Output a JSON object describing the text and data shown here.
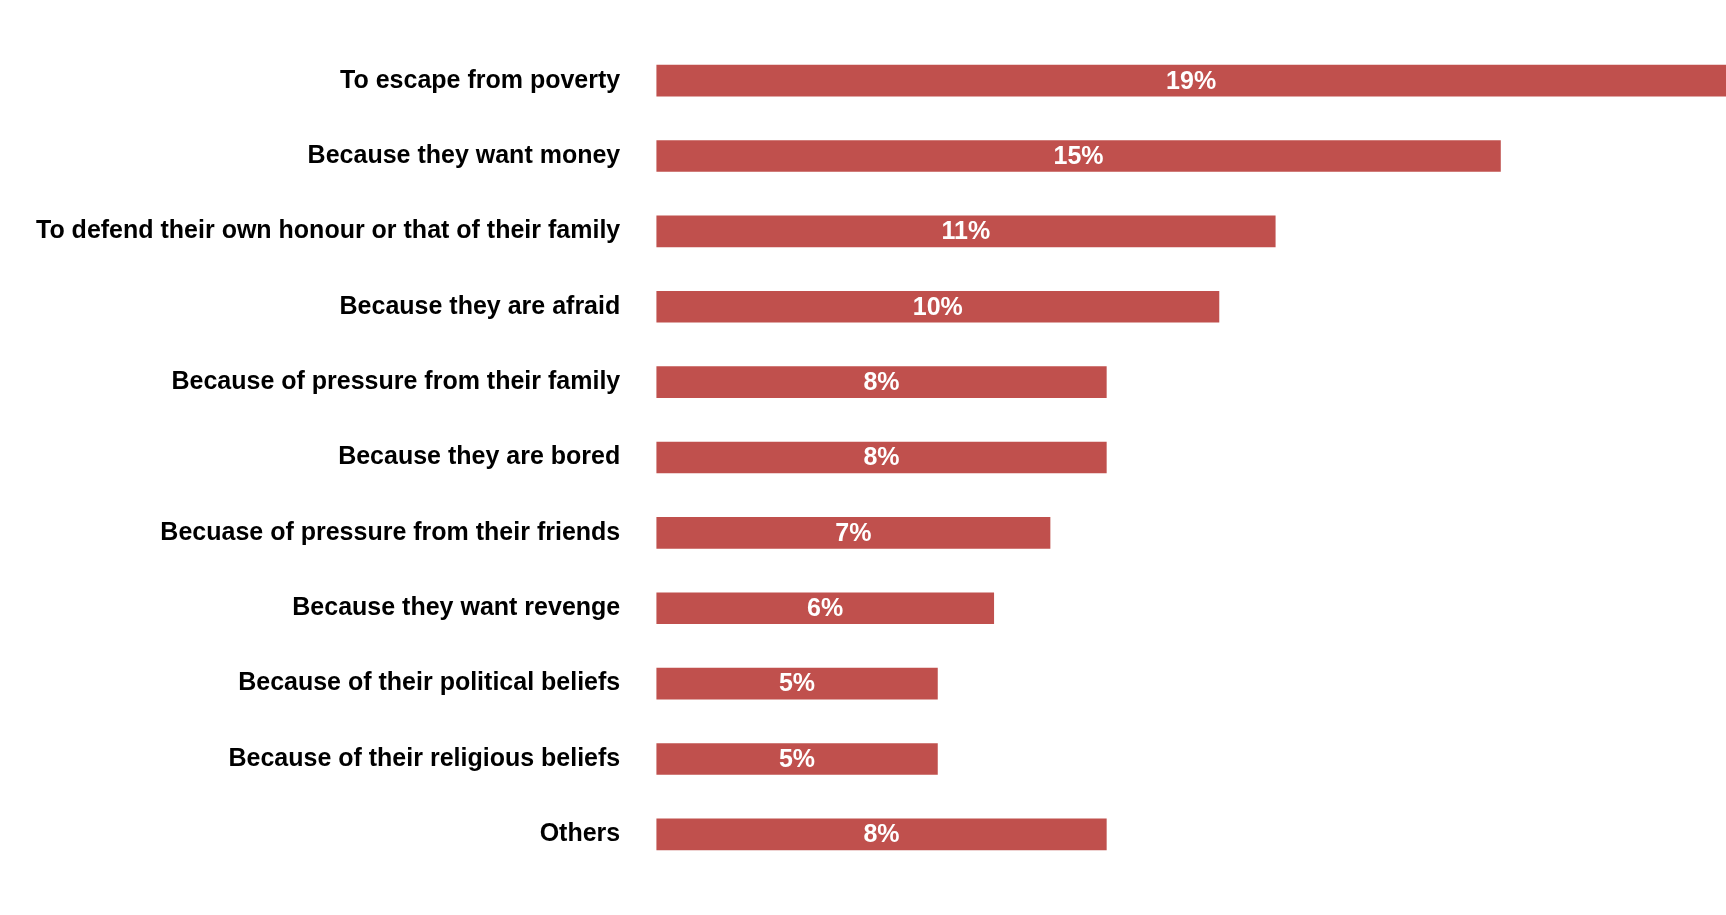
{
  "chart_data": {
    "type": "bar",
    "orientation": "horizontal",
    "categories": [
      "To escape from poverty",
      "Because they want money",
      "To defend their own honour or that of their family",
      "Because they are afraid",
      "Because of pressure from their family",
      "Because they are bored",
      "Becuase of pressure from their friends",
      "Because they want revenge",
      "Because of their political beliefs",
      "Because of their religious beliefs",
      "Others"
    ],
    "values": [
      19,
      15,
      11,
      10,
      8,
      8,
      7,
      6,
      5,
      5,
      8
    ],
    "value_labels": [
      "19%",
      "15%",
      "11%",
      "10%",
      "8%",
      "8%",
      "7%",
      "6%",
      "5%",
      "5%",
      "8%"
    ],
    "color": "#c0504d",
    "tick_labels": "y"
  }
}
